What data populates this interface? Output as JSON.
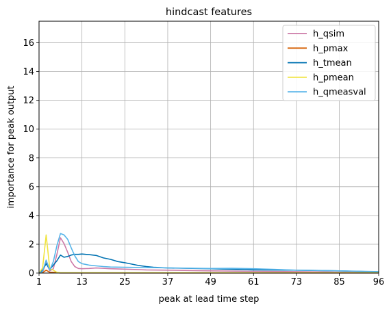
{
  "chart_data": {
    "type": "line",
    "title": "hindcast features",
    "xlabel": "peak at lead time step",
    "ylabel": "importance for peak output",
    "xlim": [
      1,
      96
    ],
    "ylim": [
      0,
      17.5
    ],
    "xticks": [
      1,
      13,
      25,
      37,
      49,
      61,
      73,
      85,
      96
    ],
    "yticks": [
      0,
      2,
      4,
      6,
      8,
      10,
      12,
      14,
      16
    ],
    "grid": true,
    "legend_position": "top-right",
    "series": [
      {
        "name": "h_qsim",
        "color": "#cc79a7",
        "x": [
          1,
          2,
          3,
          4,
          5,
          6,
          7,
          8,
          9,
          10,
          11,
          12,
          13,
          15,
          17,
          19,
          21,
          25,
          31,
          37,
          49,
          61,
          73,
          85,
          96
        ],
        "y": [
          0,
          0.05,
          0.75,
          0.15,
          0.3,
          1.3,
          2.45,
          2.05,
          1.45,
          0.8,
          0.45,
          0.32,
          0.3,
          0.32,
          0.35,
          0.33,
          0.3,
          0.27,
          0.22,
          0.2,
          0.15,
          0.12,
          0.1,
          0.06,
          0.03
        ]
      },
      {
        "name": "h_pmax",
        "color": "#d55e00",
        "x": [
          1,
          2,
          3,
          4,
          5,
          6,
          7,
          13,
          25,
          49,
          73,
          96
        ],
        "y": [
          0,
          0.03,
          0.2,
          0.05,
          0.05,
          0.02,
          0.01,
          0.01,
          0.01,
          0.01,
          0.01,
          0.01
        ]
      },
      {
        "name": "h_tmean",
        "color": "#0072b2",
        "x": [
          1,
          2,
          3,
          4,
          5,
          6,
          7,
          8,
          9,
          10,
          11,
          12,
          13,
          14,
          15,
          16,
          17,
          19,
          21,
          23,
          25,
          27,
          29,
          31,
          33,
          37,
          49,
          61,
          73,
          85,
          96
        ],
        "y": [
          0,
          0.2,
          0.65,
          0.25,
          0.55,
          0.85,
          1.25,
          1.1,
          1.15,
          1.25,
          1.3,
          1.3,
          1.32,
          1.3,
          1.28,
          1.25,
          1.22,
          1.05,
          0.95,
          0.8,
          0.72,
          0.62,
          0.52,
          0.45,
          0.4,
          0.35,
          0.3,
          0.22,
          0.2,
          0.15,
          0.08
        ]
      },
      {
        "name": "h_pmean",
        "color": "#f0e442",
        "x": [
          1,
          2,
          3,
          4,
          5,
          6,
          7,
          13,
          25,
          49,
          73,
          96
        ],
        "y": [
          0,
          0.35,
          2.65,
          0.3,
          0.2,
          0.05,
          0.02,
          0.02,
          0.02,
          0.02,
          0.02,
          0.02
        ]
      },
      {
        "name": "h_qmeasval",
        "color": "#56b4e9",
        "x": [
          1,
          2,
          3,
          4,
          5,
          6,
          7,
          8,
          9,
          10,
          11,
          12,
          13,
          15,
          17,
          19,
          21,
          25,
          31,
          37,
          43,
          49,
          55,
          61,
          67,
          73,
          79,
          85,
          96
        ],
        "y": [
          0,
          0.1,
          0.9,
          0.2,
          0.8,
          1.9,
          2.75,
          2.65,
          2.35,
          1.75,
          1.2,
          0.8,
          0.65,
          0.55,
          0.5,
          0.45,
          0.42,
          0.4,
          0.38,
          0.36,
          0.34,
          0.32,
          0.33,
          0.3,
          0.25,
          0.2,
          0.18,
          0.15,
          0.1
        ]
      }
    ]
  }
}
